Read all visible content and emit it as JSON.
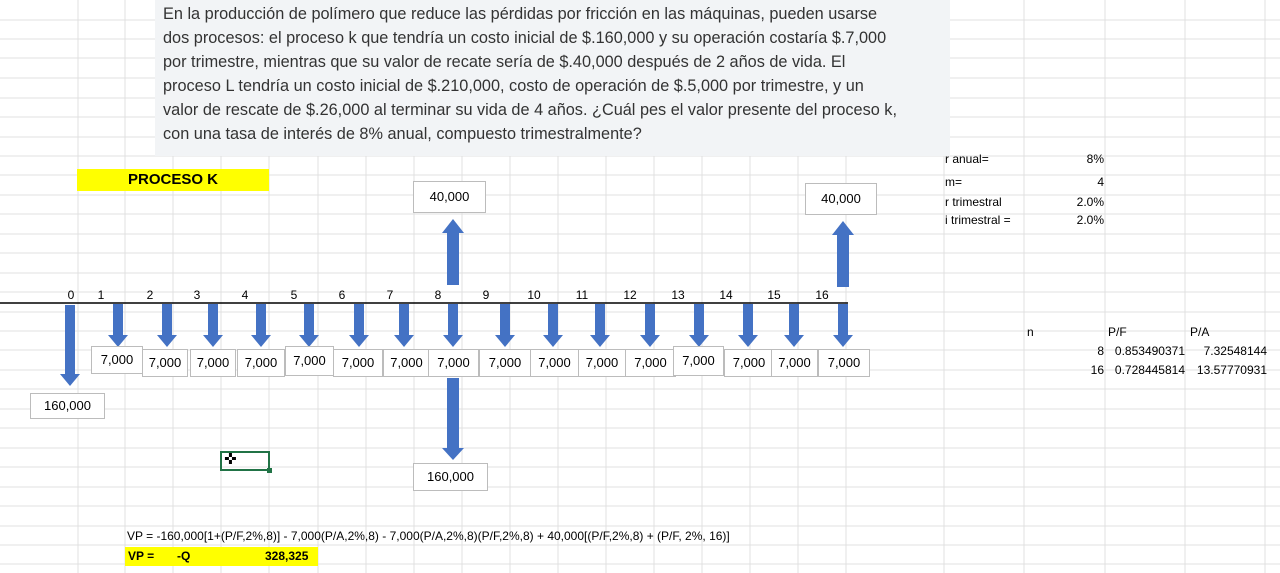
{
  "problem_lines": [
    "En la producción de polímero que reduce las pérdidas por fricción en las máquinas, pueden usarse",
    "dos procesos: el proceso k que tendría un costo inicial de $.160,000 y su operación costaría $.7,000",
    "por trimestre, mientras que su valor de recate sería de $.40,000 después de 2 años de vida.  El",
    "proceso L tendría un costo inicial de $.210,000, costo de operación de $.5,000 por trimestre, y un",
    "valor de rescate de $.26,000 al terminar su vida de 4 años.  ¿Cuál pes el valor presente del proceso k,",
    "con una tasa de interés de 8% anual, compuesto trimestralmente?"
  ],
  "proceso_label": "PROCESO K",
  "timeline": {
    "periods": [
      "0",
      "1",
      "2",
      "3",
      "4",
      "5",
      "6",
      "7",
      "8",
      "9",
      "10",
      "11",
      "12",
      "13",
      "14",
      "15",
      "16"
    ],
    "operating_cost": "7,000",
    "initial_cost": "160,000",
    "salvage": "40,000",
    "replacement_cost": "160,000",
    "arrow_color": "#4472c4"
  },
  "params": {
    "r_anual_label": "r anual=",
    "r_anual_value": "8%",
    "m_label": "m=",
    "m_value": "4",
    "r_trim_label": "r trimestral",
    "r_trim_value": "2.0%",
    "i_trim_label": "i trimestral  =",
    "i_trim_value": "2.0%"
  },
  "factors": {
    "headers": [
      "n",
      "P/F",
      "P/A"
    ],
    "rows": [
      [
        "8",
        "0.853490371",
        "7.32548144"
      ],
      [
        "16",
        "0.728445814",
        "13.57770931"
      ]
    ]
  },
  "formula": "VP = -160,000[1+(P/F,2%,8)] - 7,000(P/A,2%,8) - 7,000(P/A,2%,8)(P/F,2%,8) + 40,000[(P/F,2%,8) + (P/F, 2%, 16)]",
  "result": {
    "label": "VP =",
    "expr": "-Q",
    "value": "328,325"
  },
  "colors": {
    "highlight": "#ffff00",
    "arrow": "#4472c4",
    "selection": "#217346"
  }
}
